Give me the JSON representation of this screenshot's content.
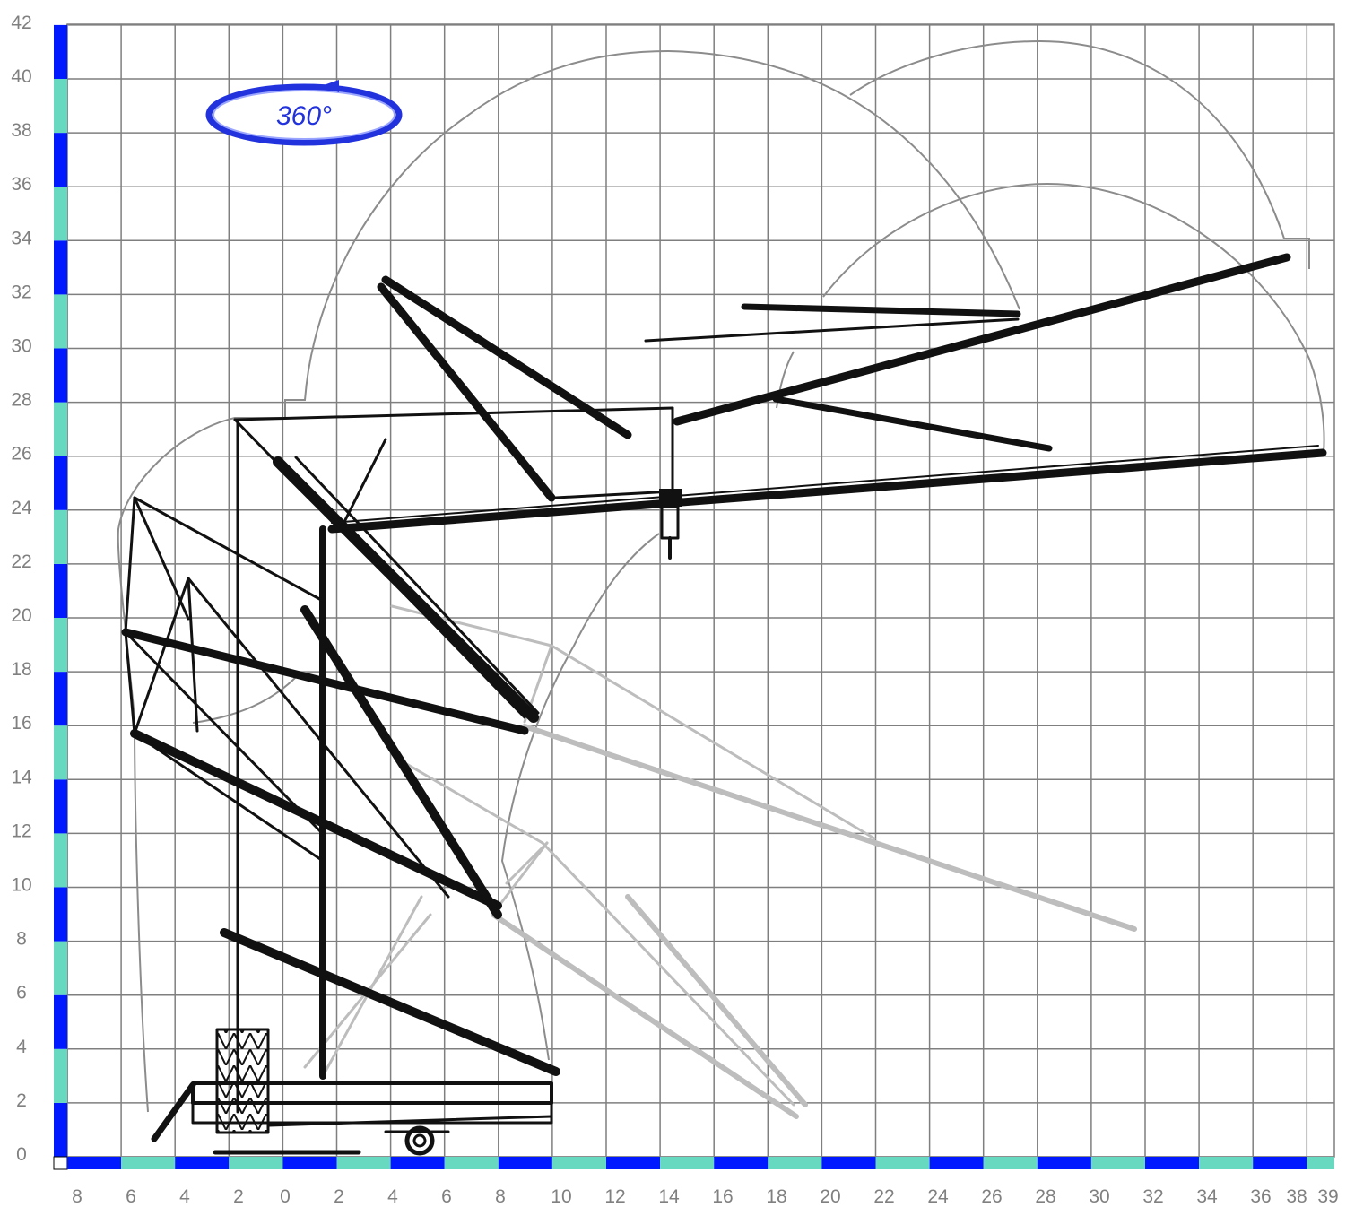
{
  "diagram": {
    "badge": {
      "label": "360°"
    },
    "y_ticks": [
      "0",
      "2",
      "4",
      "6",
      "8",
      "10",
      "12",
      "14",
      "16",
      "18",
      "20",
      "22",
      "24",
      "26",
      "28",
      "30",
      "32",
      "34",
      "36",
      "38",
      "40",
      "42"
    ],
    "x_ticks": [
      "8",
      "6",
      "4",
      "2",
      "0",
      "2",
      "4",
      "6",
      "8",
      "10",
      "12",
      "14",
      "16",
      "18",
      "20",
      "22",
      "24",
      "26",
      "28",
      "30",
      "32",
      "34",
      "36",
      "38",
      "39"
    ],
    "colors": {
      "grid": "#7f7f7f",
      "envelope": "#8c8c8c",
      "boom_active": "#111111",
      "boom_ghost": "#bdbdbd",
      "axis_blue": "#0019ff",
      "axis_teal": "#66d9c0",
      "badge": "#2233dd"
    }
  }
}
